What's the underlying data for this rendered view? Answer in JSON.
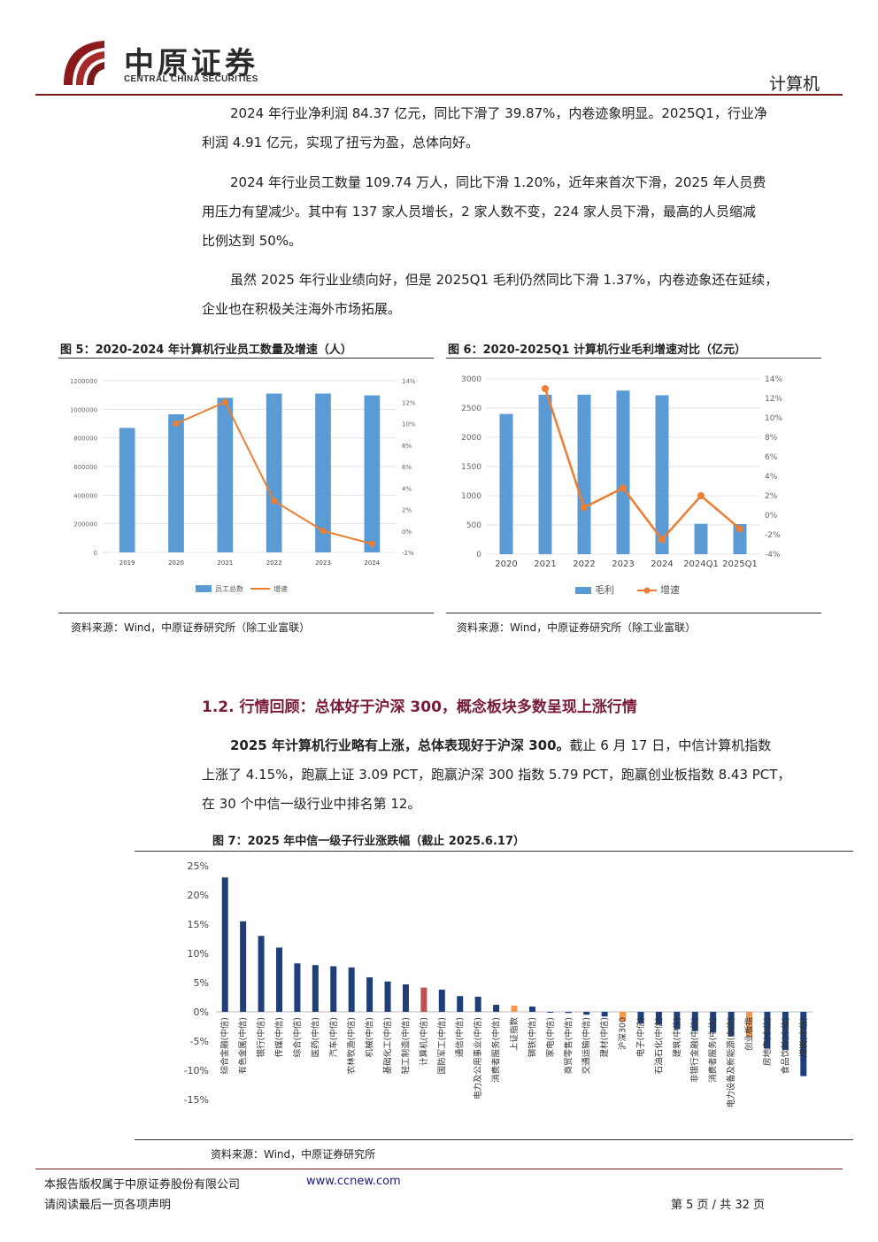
{
  "header": {
    "logo_cn": "中原证券",
    "logo_en": "CENTRAL CHINA SECURITIES",
    "sector": "计算机"
  },
  "paragraphs": [
    {
      "lines": [
        "2024 年行业净利润 84.37 亿元，同比下滑了 39.87%，内卷迹象明显。2025Q1，行业净",
        "利润 4.91 亿元，实现了扭亏为盈，总体向好。"
      ]
    },
    {
      "lines": [
        "2024 年行业员工数量 109.74 万人，同比下滑 1.20%，近年来首次下滑，2025 年人员费",
        "用压力有望减少。其中有 137 家人员增长，2 家人数不变，224 家人员下滑，最高的人员缩减",
        "比例达到 50%。"
      ]
    },
    {
      "lines": [
        "虽然 2025 年行业业绩向好，但是 2025Q1 毛利仍然同比下滑 1.37%，内卷迹象还在延续，",
        "企业也在积极关注海外市场拓展。"
      ]
    }
  ],
  "fig5": {
    "title": "图 5：2020-2024 年计算机行业员工数量及增速（人）",
    "source": "资料来源：Wind，中原证券研究所（除工业富联）"
  },
  "fig6": {
    "title": "图 6：2020-2025Q1 计算机行业毛利增速对比（亿元）",
    "source": "资料来源：Wind，中原证券研究所（除工业富联）"
  },
  "section": {
    "heading": "1.2. 行情回顾：总体好于沪深 300，概念板块多数呈现上涨行情"
  },
  "para4": {
    "bold": "2025 年计算机行业略有上涨，总体表现好于沪深 300。",
    "line1_rest": "截止 6 月 17 日，中信计算机指数",
    "line2": "上涨了 4.15%，跑赢上证 3.09 PCT，跑赢沪深 300 指数 5.79 PCT，跑赢创业板指数 8.43 PCT，",
    "line3": "在 30 个中信一级行业中排名第 12。"
  },
  "fig7": {
    "title": "图 7：2025 年中信一级子行业涨跌幅（截止 2025.6.17）",
    "source": "资料来源：Wind，中原证券研究所"
  },
  "footer": {
    "copyright": "本报告版权属于中原证券股份有限公司",
    "url": "www.ccnew.com",
    "disclaimer": "请阅读最后一页各项声明",
    "page": "第 5 页 / 共 32 页"
  },
  "chart_data": [
    {
      "type": "bar+line",
      "categories": [
        "2019",
        "2020",
        "2021",
        "2022",
        "2023",
        "2024"
      ],
      "series": [
        {
          "name": "员工总数",
          "kind": "bar",
          "axis": "left",
          "values": [
            870000,
            965000,
            1080000,
            1110000,
            1110000,
            1097400
          ]
        },
        {
          "name": "增速",
          "kind": "line",
          "axis": "right",
          "values": [
            null,
            0.1,
            0.12,
            0.028,
            0.0,
            -0.012
          ]
        }
      ],
      "ylim_left": [
        0,
        1200000
      ],
      "yticks_left": [
        "0",
        "200000",
        "400000",
        "600000",
        "800000",
        "1000000",
        "1200000"
      ],
      "ylim_right": [
        -0.02,
        0.14
      ],
      "yticks_right": [
        "-2%",
        "0%",
        "2%",
        "4%",
        "6%",
        "8%",
        "10%",
        "12%",
        "14%"
      ],
      "legend": "bottom",
      "colors": {
        "bar": "#5b9bd5",
        "line": "#ed7d31"
      }
    },
    {
      "type": "bar+line",
      "categories": [
        "2020",
        "2021",
        "2022",
        "2023",
        "2024",
        "2024Q1",
        "2025Q1"
      ],
      "series": [
        {
          "name": "毛利",
          "kind": "bar",
          "axis": "left",
          "values": [
            2400,
            2730,
            2730,
            2800,
            2720,
            520,
            515
          ]
        },
        {
          "name": "增速",
          "kind": "line",
          "axis": "right",
          "values": [
            null,
            0.13,
            0.008,
            0.028,
            -0.025,
            0.02,
            -0.014
          ]
        }
      ],
      "ylim_left": [
        0,
        3000
      ],
      "yticks_left": [
        "0",
        "500",
        "1000",
        "1500",
        "2000",
        "2500",
        "3000"
      ],
      "ylim_right": [
        -0.04,
        0.14
      ],
      "yticks_right": [
        "-4%",
        "-2%",
        "0%",
        "2%",
        "4%",
        "6%",
        "8%",
        "10%",
        "12%",
        "14%"
      ],
      "legend": "bottom",
      "colors": {
        "bar": "#5b9bd5",
        "line": "#ed7d31"
      }
    },
    {
      "type": "bar",
      "categories": [
        "综合金融(中信)",
        "有色金属(中信)",
        "银行(中信)",
        "传媒(中信)",
        "综合(中信)",
        "医药(中信)",
        "汽车(中信)",
        "农林牧渔(中信)",
        "机械(中信)",
        "基础化工(中信)",
        "轻工制造(中信)",
        "计算机(中信)",
        "国防军工(中信)",
        "通信(中信)",
        "电力及公用事业(中信)",
        "消费者服务(中信)",
        "上证指数",
        "钢铁(中信)",
        "家电(中信)",
        "商贸零售(中信)",
        "交通运输(中信)",
        "建材(中信)",
        "沪深300",
        "电子(中信)",
        "石油石化(中信)",
        "建筑(中信)",
        "非银行金融(中信)",
        "消费者服务(中信)",
        "电力设备及新能源(中信)",
        "创业板指",
        "房地产(中信)",
        "食品饮料(中信)",
        "煤炭(中信)"
      ],
      "values": [
        0.23,
        0.155,
        0.13,
        0.11,
        0.083,
        0.08,
        0.078,
        0.076,
        0.059,
        0.052,
        0.047,
        0.0415,
        0.038,
        0.027,
        0.026,
        0.012,
        0.0106,
        0.009,
        -0.001,
        -0.002,
        -0.005,
        -0.008,
        -0.0164,
        -0.02,
        -0.022,
        -0.03,
        -0.033,
        -0.035,
        -0.042,
        -0.0428,
        -0.063,
        -0.065,
        -0.11
      ],
      "highlight": {
        "计算机(中信)": "#c0504d",
        "上证指数": "#f79646",
        "沪深300": "#f79646",
        "创业板指": "#f79646"
      },
      "ylim": [
        -0.15,
        0.25
      ],
      "yticks": [
        "-15%",
        "-10%",
        "-5%",
        "0%",
        "5%",
        "10%",
        "15%",
        "20%",
        "25%"
      ],
      "colors": {
        "bar": "#1f3f7a"
      }
    }
  ]
}
